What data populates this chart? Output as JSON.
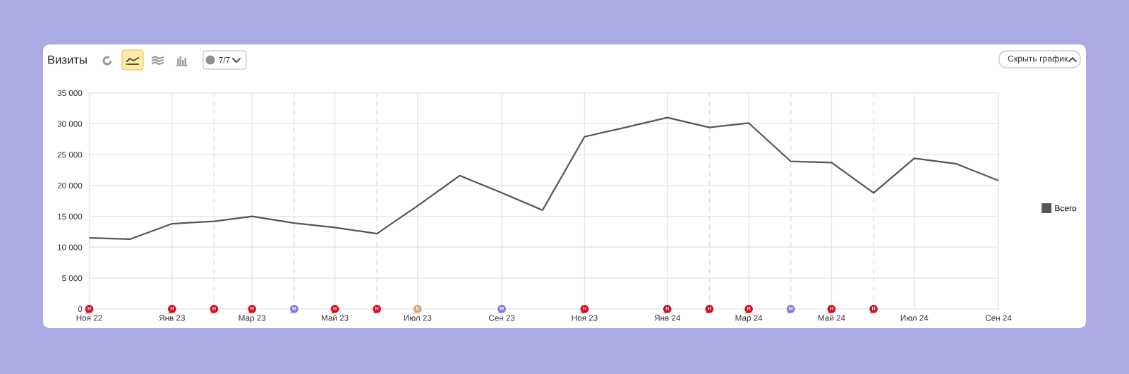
{
  "chart_data": {
    "type": "line",
    "title": "Визиты",
    "x": [
      "2022-11",
      "2022-12",
      "2023-01",
      "2023-02",
      "2023-03",
      "2023-04",
      "2023-05",
      "2023-06",
      "2023-07",
      "2023-08",
      "2023-09",
      "2023-10",
      "2023-11",
      "2023-12",
      "2024-01",
      "2024-02",
      "2024-03",
      "2024-04",
      "2024-05",
      "2024-06",
      "2024-07",
      "2024-08",
      "2024-09"
    ],
    "series": [
      {
        "name": "Всего",
        "color": "#555555",
        "values": [
          11500,
          11300,
          13800,
          14200,
          15000,
          13900,
          13200,
          12200,
          16700,
          21600,
          18800,
          16000,
          27900,
          29400,
          31000,
          29400,
          30100,
          23900,
          23700,
          18800,
          24400,
          23500,
          20800
        ]
      },
      {
        "type": "scatter",
        "marker": "circle",
        "x": [
          "2022-11",
          "2023-01",
          "2023-02",
          "2023-03",
          "2023-04",
          "2023-05",
          "2023-06",
          "2023-07",
          "2023-09",
          "2023-11",
          "2024-01",
          "2024-02",
          "2024-03",
          "2024-04",
          "2024-05",
          "2024-06"
        ],
        "values": [
          0,
          0,
          0,
          0,
          0,
          0,
          0,
          0,
          0,
          0,
          0,
          0,
          0,
          0,
          0,
          0
        ],
        "colors": [
          "#d40f1c",
          "#d40f1c",
          "#d40f1c",
          "#d40f1c",
          "#8577d6",
          "#d40f1c",
          "#d40f1c",
          "#d3a37e",
          "#8577d6",
          "#d40f1c",
          "#d40f1c",
          "#d40f1c",
          "#d40f1c",
          "#8577d6",
          "#d40f1c",
          "#d40f1c"
        ],
        "value_labels": [
          "Н",
          "Н",
          "Н",
          "Н",
          "М",
          "Н",
          "Н",
          "Е",
          "М",
          "Н",
          "Н",
          "Н",
          "Н",
          "М",
          "Н",
          "Н"
        ]
      }
    ],
    "xlim": [
      "2022-11",
      "2024-09"
    ],
    "xticks": [
      {
        "value": "2022-11",
        "label": "Ноя 22"
      },
      {
        "value": "2023-01",
        "label": "Янв 23"
      },
      {
        "value": "2023-03",
        "label": "Мар 23"
      },
      {
        "value": "2023-05",
        "label": "Май 23"
      },
      {
        "value": "2023-07",
        "label": "Июл 23"
      },
      {
        "value": "2023-09",
        "label": "Сен 23"
      },
      {
        "value": "2023-11",
        "label": "Ноя 23"
      },
      {
        "value": "2024-01",
        "label": "Янв 24"
      },
      {
        "value": "2024-03",
        "label": "Мар 24"
      },
      {
        "value": "2024-05",
        "label": "Май 24"
      },
      {
        "value": "2024-07",
        "label": "Июл 24"
      },
      {
        "value": "2024-09",
        "label": "Сен 24"
      }
    ],
    "ylim": [
      0,
      35000
    ],
    "yticks": [
      0,
      {
        "value": 5000,
        "label": "5 000"
      },
      {
        "value": 10000,
        "label": "10 000"
      },
      {
        "value": 15000,
        "label": "15 000"
      },
      {
        "value": 20000,
        "label": "20 000"
      },
      {
        "value": 25000,
        "label": "25 000"
      },
      {
        "value": 30000,
        "label": "30 000"
      },
      {
        "value": 35000,
        "label": "35 000"
      }
    ],
    "grid": true,
    "legend": "right",
    "ref_lines": [
      {
        "axis": "x",
        "value": "2023-02",
        "color": "#dddddd",
        "line_style": "dashed"
      },
      {
        "axis": "x",
        "value": "2023-04",
        "color": "#dddddd",
        "line_style": "dashed"
      },
      {
        "axis": "x",
        "value": "2023-06",
        "color": "#dddddd",
        "line_style": "dashed"
      },
      {
        "axis": "x",
        "value": "2024-02",
        "color": "#dddddd",
        "line_style": "dashed"
      },
      {
        "axis": "x",
        "value": "2024-04",
        "color": "#dddddd",
        "line_style": "dashed"
      },
      {
        "axis": "x",
        "value": "2024-06",
        "color": "#dddddd",
        "line_style": "dashed"
      }
    ],
    "annotations": [
      "7/7",
      "Скрыть график"
    ]
  }
}
